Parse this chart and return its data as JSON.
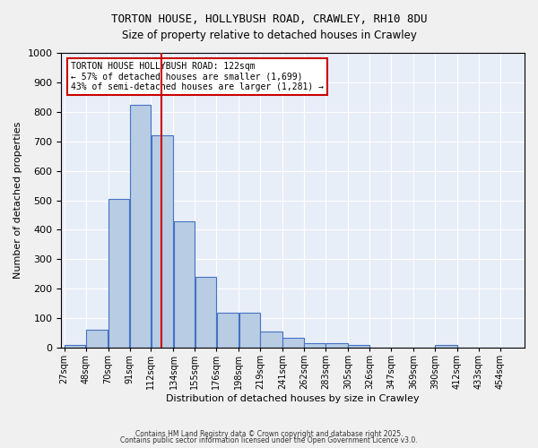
{
  "title1": "TORTON HOUSE, HOLLYBUSH ROAD, CRAWLEY, RH10 8DU",
  "title2": "Size of property relative to detached houses in Crawley",
  "xlabel": "Distribution of detached houses by size in Crawley",
  "ylabel": "Number of detached properties",
  "bins": [
    27,
    48,
    70,
    91,
    112,
    134,
    155,
    176,
    198,
    219,
    241,
    262,
    283,
    305,
    326,
    347,
    369,
    390,
    412,
    433,
    454
  ],
  "bin_labels": [
    "27sqm",
    "48sqm",
    "70sqm",
    "91sqm",
    "112sqm",
    "134sqm",
    "155sqm",
    "176sqm",
    "198sqm",
    "219sqm",
    "241sqm",
    "262sqm",
    "283sqm",
    "305sqm",
    "326sqm",
    "347sqm",
    "369sqm",
    "390sqm",
    "412sqm",
    "433sqm",
    "454sqm"
  ],
  "values": [
    10,
    60,
    505,
    825,
    720,
    430,
    240,
    120,
    120,
    55,
    35,
    15,
    15,
    10,
    0,
    0,
    0,
    10,
    0,
    0
  ],
  "bar_color": "#b8cce4",
  "bar_edge_color": "#4472c4",
  "vline_x": 122,
  "vline_color": "#cc0000",
  "annotation_title": "TORTON HOUSE HOLLYBUSH ROAD: 122sqm",
  "annotation_line2": "← 57% of detached houses are smaller (1,699)",
  "annotation_line3": "43% of semi-detached houses are larger (1,281) →",
  "annotation_box_color": "#cc0000",
  "ylim": [
    0,
    1000
  ],
  "yticks": [
    0,
    100,
    200,
    300,
    400,
    500,
    600,
    700,
    800,
    900,
    1000
  ],
  "background_color": "#e8eef8",
  "grid_color": "#ffffff",
  "footnote1": "Contains HM Land Registry data © Crown copyright and database right 2025.",
  "footnote2": "Contains public sector information licensed under the Open Government Licence v3.0."
}
